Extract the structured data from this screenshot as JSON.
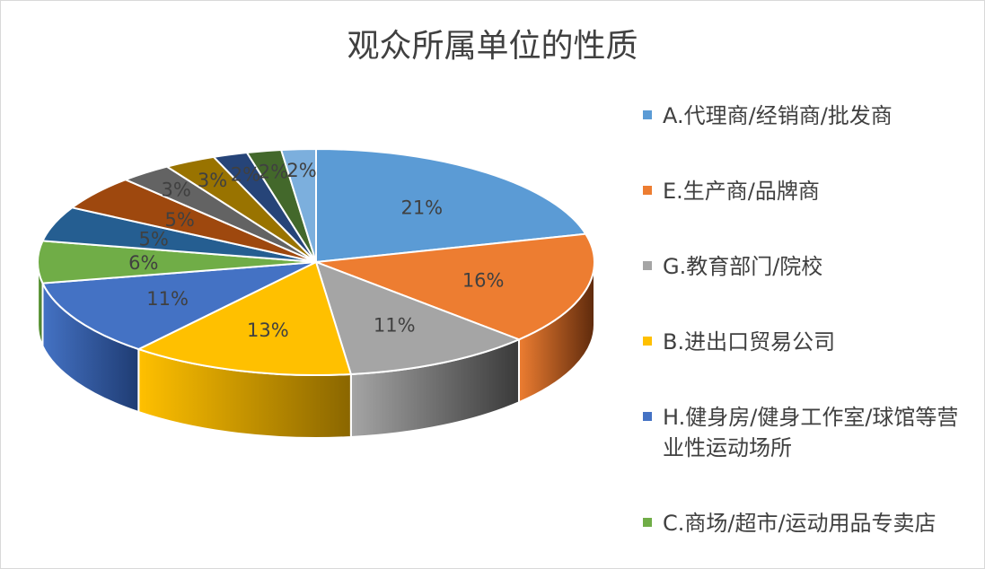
{
  "chart_data": {
    "type": "pie",
    "title": "观众所属单位的性质",
    "slices": [
      {
        "label": "A.代理商/经销商/批发商",
        "value": 21,
        "display": "21%",
        "color": "#5B9BD5",
        "dark": "#2E5F8C"
      },
      {
        "label": "E.生产商/品牌商",
        "value": 16,
        "display": "16%",
        "color": "#ED7D31",
        "dark": "#5E2A0C"
      },
      {
        "label": "G.教育部门/院校",
        "value": 11,
        "display": "11%",
        "color": "#A5A5A5",
        "dark": "#3A3A3A"
      },
      {
        "label": "B.进出口贸易公司",
        "value": 13,
        "display": "13%",
        "color": "#FFC000",
        "dark": "#8A6600"
      },
      {
        "label": "H.健身房/健身工作室/球馆等营业性运动场所",
        "value": 11,
        "display": "11%",
        "color": "#4472C4",
        "dark": "#1F3C73"
      },
      {
        "label": "C.商场/超市/运动用品专卖店",
        "value": 6,
        "display": "6%",
        "color": "#70AD47",
        "dark": "#3C6B22"
      },
      {
        "label": "",
        "value": 5,
        "display": "5%",
        "color": "#255E91",
        "dark": "#143A5C"
      },
      {
        "label": "",
        "value": 5,
        "display": "5%",
        "color": "#9E480E",
        "dark": "#5C2906"
      },
      {
        "label": "",
        "value": 3,
        "display": "3%",
        "color": "#636363",
        "dark": "#333333"
      },
      {
        "label": "",
        "value": 3,
        "display": "3%",
        "color": "#997300",
        "dark": "#5A4400"
      },
      {
        "label": "",
        "value": 2,
        "display": "2%",
        "color": "#264478",
        "dark": "#142647"
      },
      {
        "label": "",
        "value": 2,
        "display": "2%",
        "color": "#43682B",
        "dark": "#253B17"
      },
      {
        "label": "",
        "value": 2,
        "display": "2%",
        "color": "#7CAFDD",
        "dark": "#4A7BA8"
      }
    ],
    "legend_position": "right"
  }
}
